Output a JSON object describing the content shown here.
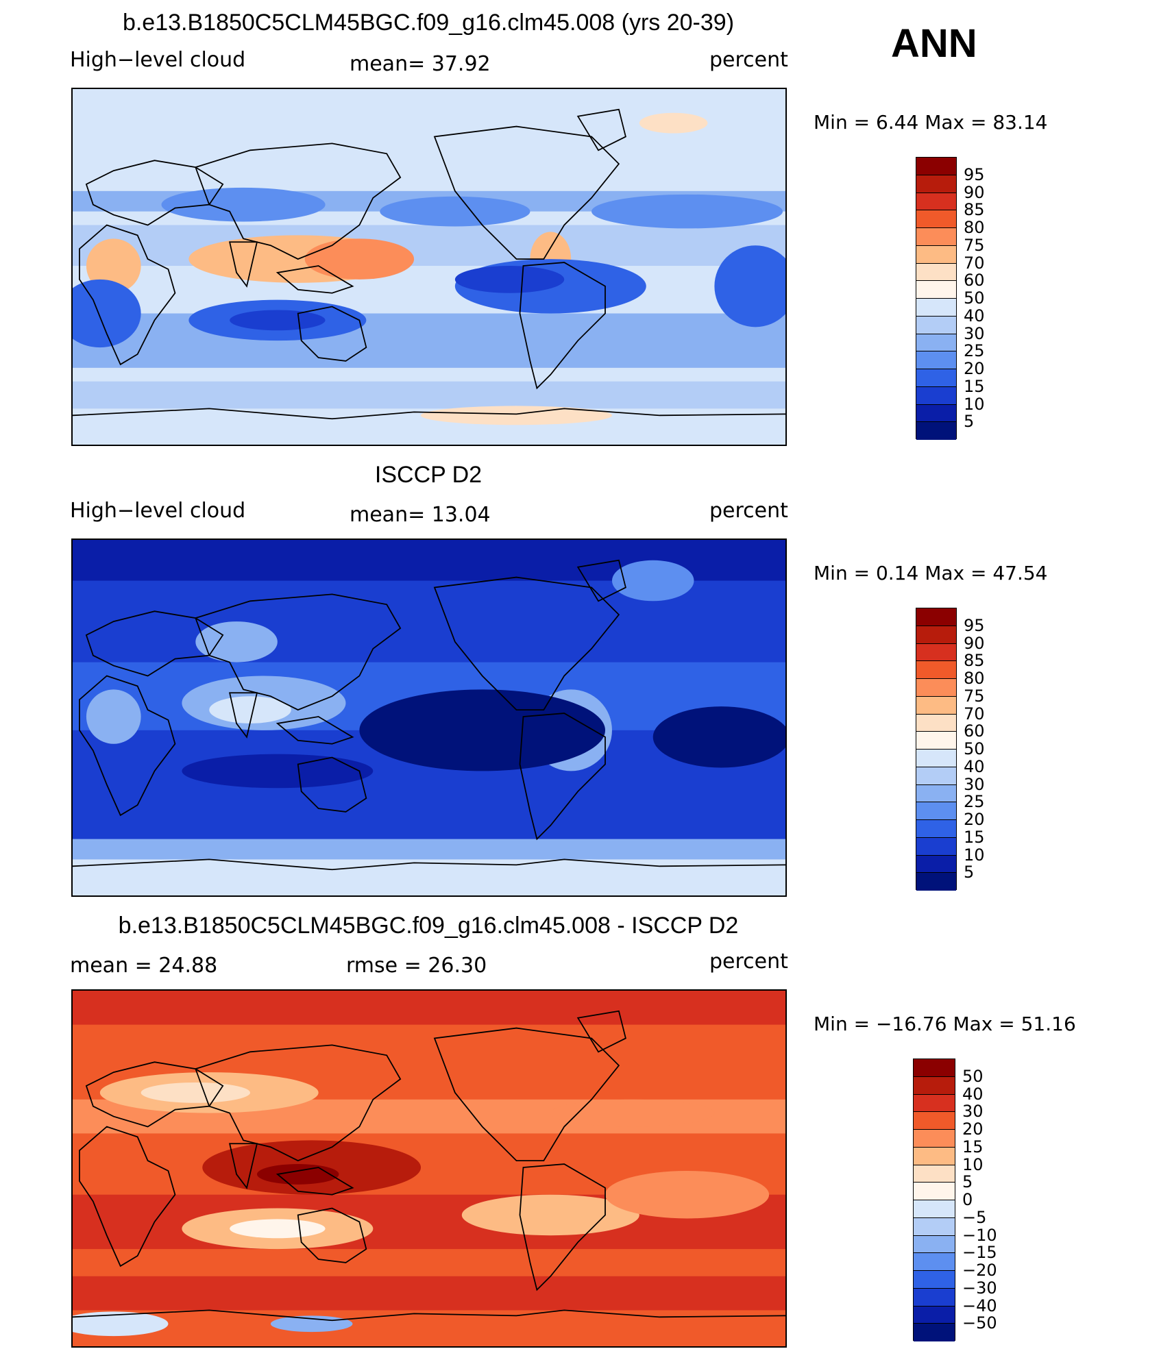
{
  "season": "ANN",
  "panels": [
    {
      "title": "b.e13.B1850C5CLM45BGC.f09_g16.clm45.008 (yrs 20-39)",
      "left": "High−level cloud",
      "center": "mean=   37.92",
      "right": "percent",
      "minmax": "Min =    6.44 Max =   83.14",
      "colorbar_labels": [
        "95",
        "90",
        "85",
        "80",
        "75",
        "70",
        "60",
        "50",
        "40",
        "30",
        "25",
        "20",
        "15",
        "10",
        "5"
      ],
      "colorbar_colors": [
        "#8b0000",
        "#b71c0c",
        "#d7301f",
        "#f05a2a",
        "#fc8d59",
        "#fdbb84",
        "#fde0c5",
        "#fff5eb",
        "#d6e6fa",
        "#b3cdf6",
        "#8ab1f2",
        "#5d8ff0",
        "#2f62e6",
        "#1a3ed0",
        "#0a1ea8",
        "#00127a"
      ],
      "chart_data": {
        "type": "heatmap",
        "title": "b.e13.B1850C5CLM45BGC.f09_g16.clm45.008 (yrs 20-39)",
        "variable": "High−level cloud",
        "units": "percent",
        "mean": 37.92,
        "min": 6.44,
        "max": 83.14,
        "levels": [
          5,
          10,
          15,
          20,
          25,
          30,
          40,
          50,
          60,
          70,
          75,
          80,
          85,
          90,
          95
        ]
      }
    },
    {
      "title": "ISCCP D2",
      "left": "High−level cloud",
      "center": "mean=   13.04",
      "right": "percent",
      "minmax": "Min =    0.14 Max =   47.54",
      "colorbar_labels": [
        "95",
        "90",
        "85",
        "80",
        "75",
        "70",
        "60",
        "50",
        "40",
        "30",
        "25",
        "20",
        "15",
        "10",
        "5"
      ],
      "colorbar_colors": [
        "#8b0000",
        "#b71c0c",
        "#d7301f",
        "#f05a2a",
        "#fc8d59",
        "#fdbb84",
        "#fde0c5",
        "#fff5eb",
        "#d6e6fa",
        "#b3cdf6",
        "#8ab1f2",
        "#5d8ff0",
        "#2f62e6",
        "#1a3ed0",
        "#0a1ea8",
        "#00127a"
      ],
      "chart_data": {
        "type": "heatmap",
        "title": "ISCCP D2",
        "variable": "High−level cloud",
        "units": "percent",
        "mean": 13.04,
        "min": 0.14,
        "max": 47.54,
        "levels": [
          5,
          10,
          15,
          20,
          25,
          30,
          40,
          50,
          60,
          70,
          75,
          80,
          85,
          90,
          95
        ]
      }
    },
    {
      "title": "b.e13.B1850C5CLM45BGC.f09_g16.clm45.008 - ISCCP D2",
      "left": "mean =   24.88",
      "center": "rmse =   26.30",
      "right": "percent",
      "minmax": "Min = −16.76 Max =   51.16",
      "colorbar_labels": [
        "50",
        "40",
        "30",
        "20",
        "15",
        "10",
        "5",
        "0",
        "−5",
        "−10",
        "−15",
        "−20",
        "−30",
        "−40",
        "−50"
      ],
      "colorbar_colors": [
        "#8b0000",
        "#b71c0c",
        "#d7301f",
        "#f05a2a",
        "#fc8d59",
        "#fdbb84",
        "#fde0c5",
        "#fff5eb",
        "#d6e6fa",
        "#b3cdf6",
        "#8ab1f2",
        "#5d8ff0",
        "#2f62e6",
        "#1a3ed0",
        "#0a1ea8",
        "#00127a"
      ],
      "chart_data": {
        "type": "heatmap",
        "title": "b.e13.B1850C5CLM45BGC.f09_g16.clm45.008 - ISCCP D2",
        "units": "percent",
        "mean": 24.88,
        "rmse": 26.3,
        "min": -16.76,
        "max": 51.16,
        "levels": [
          -50,
          -40,
          -30,
          -20,
          -15,
          -10,
          -5,
          0,
          5,
          10,
          15,
          20,
          30,
          40,
          50
        ]
      }
    }
  ]
}
